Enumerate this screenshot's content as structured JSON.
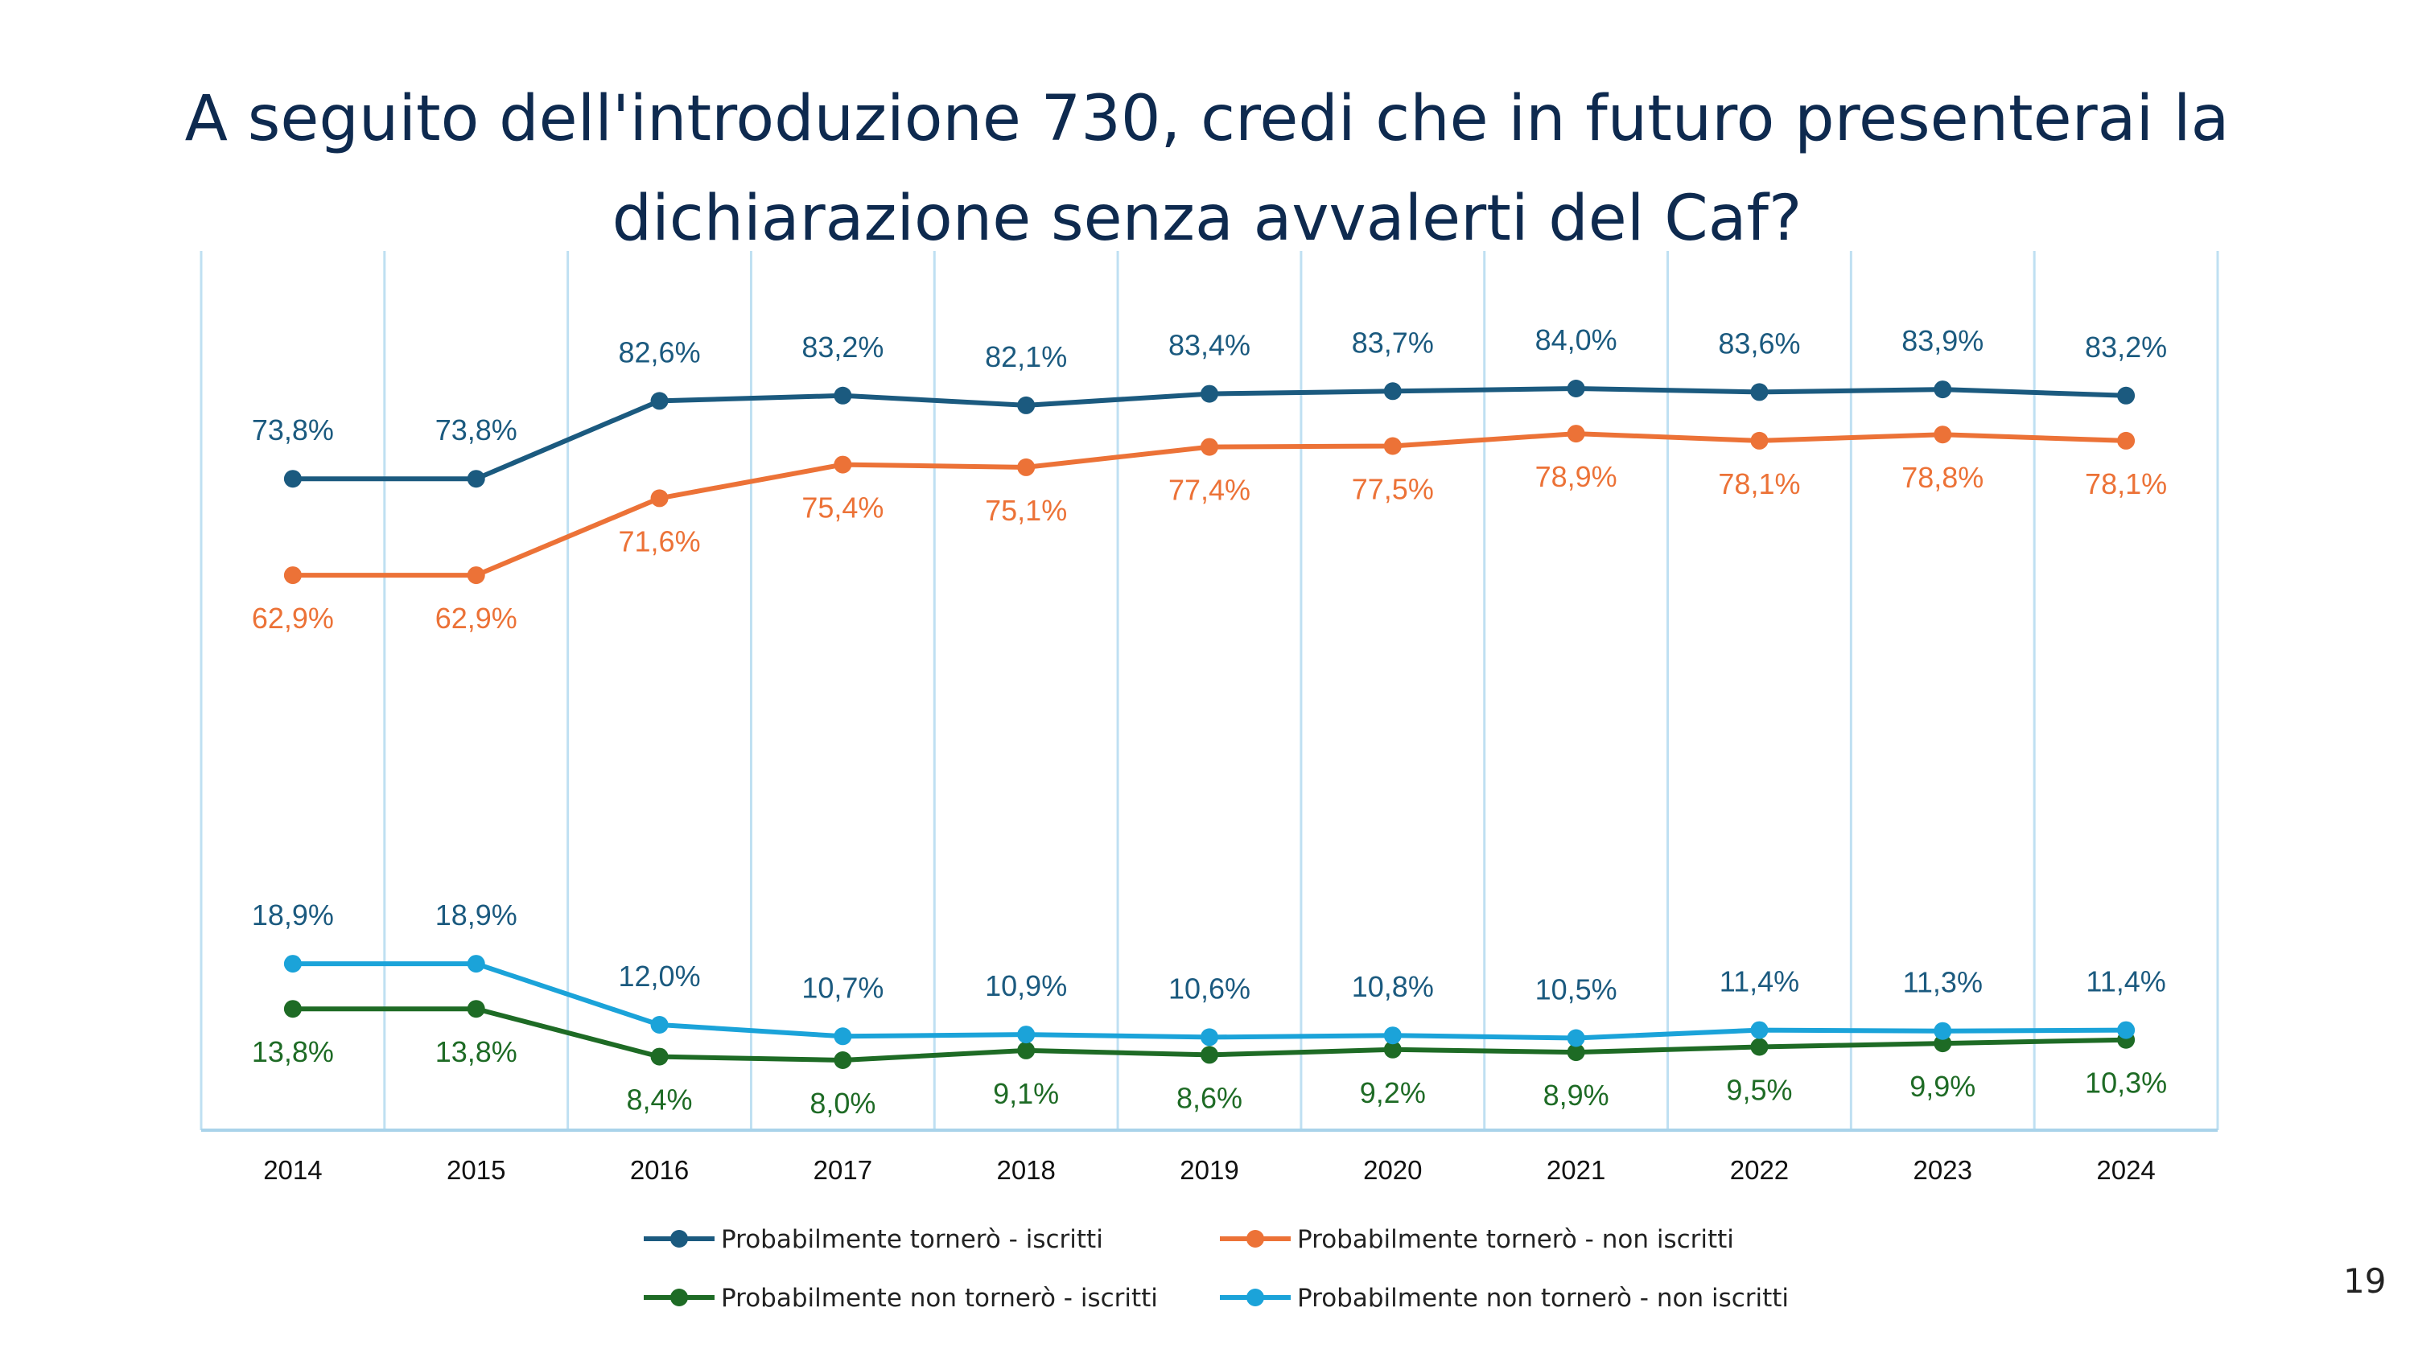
{
  "title": {
    "line1": "A seguito dell'introduzione 730, credi che in futuro presenterai la",
    "line2": "dichiarazione senza avvalerti del Caf?"
  },
  "page_number": "19",
  "chart_data": {
    "type": "line",
    "categories": [
      "2014",
      "2015",
      "2016",
      "2017",
      "2018",
      "2019",
      "2020",
      "2021",
      "2022",
      "2023",
      "2024"
    ],
    "series": [
      {
        "name": "Probabilmente tornerò - iscritti",
        "color": "#1b5a7f",
        "values": [
          73.8,
          73.8,
          82.6,
          83.2,
          82.1,
          83.4,
          83.7,
          84.0,
          83.6,
          83.9,
          83.2
        ],
        "labels": [
          "73,8%",
          "73,8%",
          "82,6%",
          "83,2%",
          "82,1%",
          "83,4%",
          "83,7%",
          "84,0%",
          "83,6%",
          "83,9%",
          "83,2%"
        ],
        "label_position": "above"
      },
      {
        "name": "Probabilmente tornerò - non iscritti",
        "color": "#ec7237",
        "values": [
          62.9,
          62.9,
          71.6,
          75.4,
          75.1,
          77.4,
          77.5,
          78.9,
          78.1,
          78.8,
          78.1
        ],
        "labels": [
          "62,9%",
          "62,9%",
          "71,6%",
          "75,4%",
          "75,1%",
          "77,4%",
          "77,5%",
          "78,9%",
          "78,1%",
          "78,8%",
          "78,1%"
        ],
        "label_position": "below"
      },
      {
        "name": "Probabilmente non tornerò - iscritti",
        "color": "#1e6b25",
        "values": [
          13.8,
          13.8,
          8.4,
          8.0,
          9.1,
          8.6,
          9.2,
          8.9,
          9.5,
          9.9,
          10.3
        ],
        "labels": [
          "13,8%",
          "13,8%",
          "8,4%",
          "8,0%",
          "9,1%",
          "8,6%",
          "9,2%",
          "8,9%",
          "9,5%",
          "9,9%",
          "10,3%"
        ],
        "label_position": "below"
      },
      {
        "name": "Probabilmente non tornerò - non iscritti",
        "color": "#1ba3d9",
        "label_color": "#1b5a7f",
        "values": [
          18.9,
          18.9,
          12.0,
          10.7,
          10.9,
          10.6,
          10.8,
          10.5,
          11.4,
          11.3,
          11.4
        ],
        "labels": [
          "18,9%",
          "18,9%",
          "12,0%",
          "10,7%",
          "10,9%",
          "10,6%",
          "10,8%",
          "10,5%",
          "11,4%",
          "11,3%",
          "11,4%"
        ],
        "label_position": "above"
      }
    ],
    "ylim": [
      0,
      100
    ],
    "grid": "vertical",
    "legend": "bottom"
  }
}
